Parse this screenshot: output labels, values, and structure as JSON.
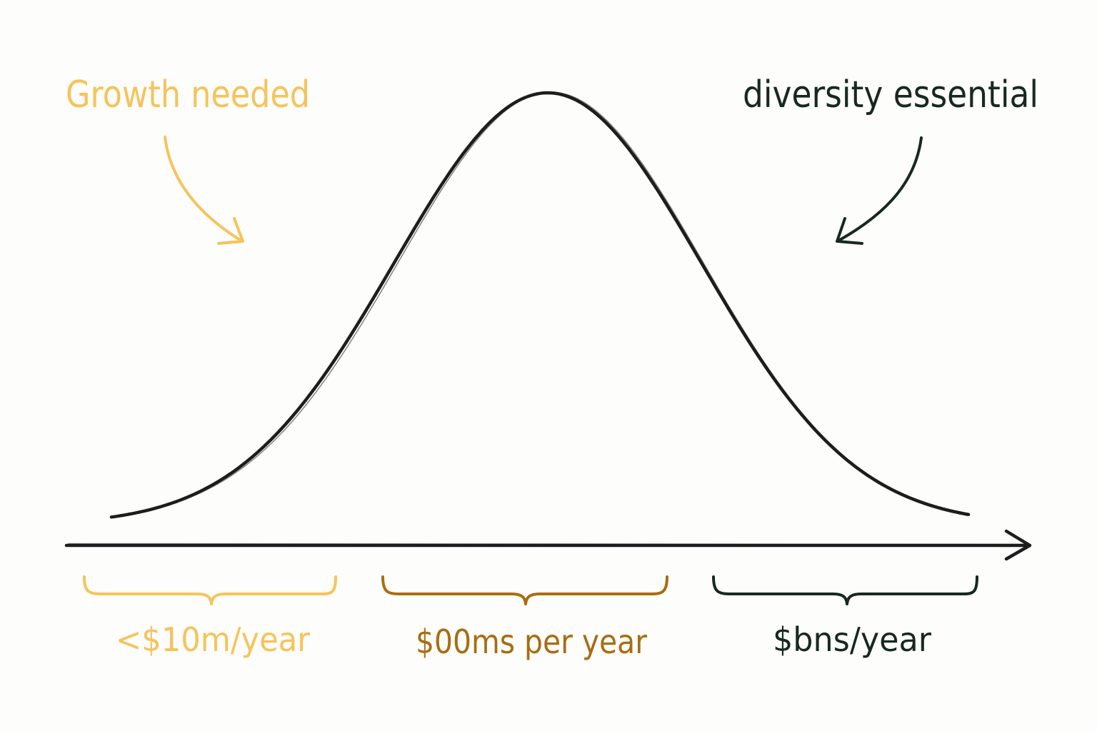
{
  "annotations": {
    "left": {
      "text": "Growth needed",
      "color": "#f6c35c"
    },
    "right": {
      "text": "diversity essential",
      "color": "#17291f"
    }
  },
  "segments": [
    {
      "label": "<$10m/year",
      "color": "#f6c35c"
    },
    {
      "label": "$00ms per year",
      "color": "#a86d12"
    },
    {
      "label": "$bns/year",
      "color": "#17291f"
    }
  ],
  "colors": {
    "curve": "#1d1d1d",
    "axis": "#1d1d1d",
    "background": "#fdfdfc"
  },
  "icons": {
    "left_arrow": "curved-arrow-down-right-icon",
    "right_arrow": "curved-arrow-down-left-icon",
    "axis_arrow": "arrow-right-icon"
  }
}
